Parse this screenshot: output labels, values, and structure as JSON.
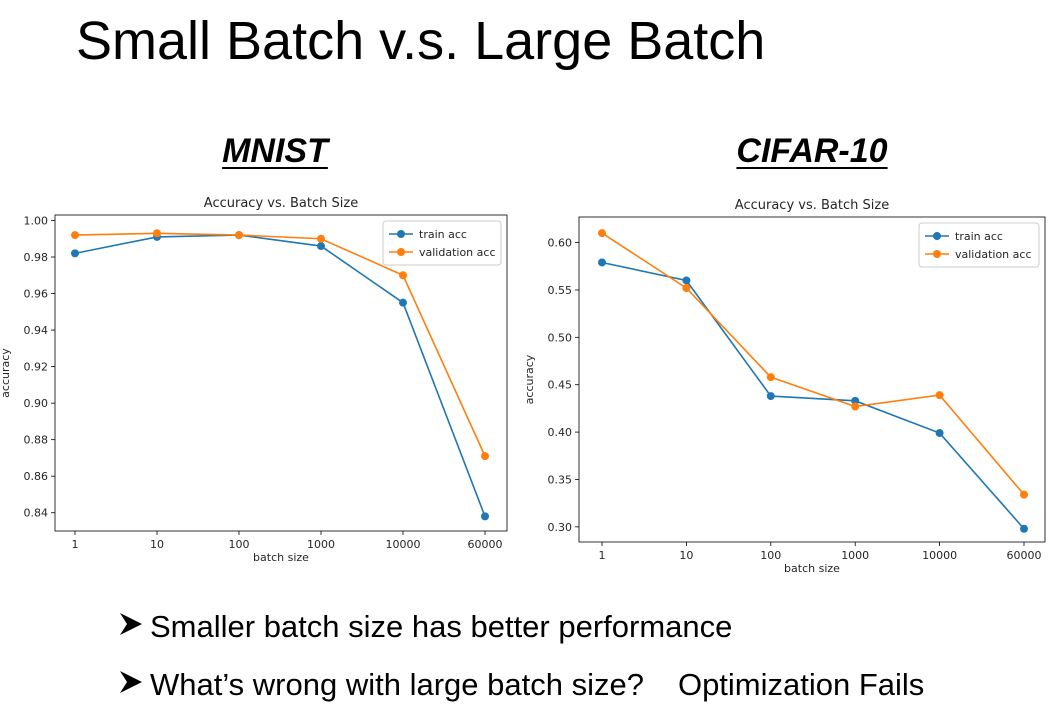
{
  "slide": {
    "title": "Small Batch v.s. Large Batch",
    "bullets": [
      {
        "text": "Smaller batch size has better performance",
        "answer": ""
      },
      {
        "text": "What’s wrong with large batch size?",
        "answer": "Optimization Fails"
      }
    ]
  },
  "headings": {
    "left": "MNIST",
    "right": "CIFAR-10"
  },
  "colors": {
    "train": "#1f77b4",
    "validation": "#ff7f0e"
  },
  "chart_data": [
    {
      "type": "line",
      "title": "Accuracy vs. Batch Size",
      "xlabel": "batch size",
      "ylabel": "accuracy",
      "categories": [
        "1",
        "10",
        "100",
        "1000",
        "10000",
        "60000"
      ],
      "ylim": [
        0.83,
        1.003
      ],
      "yticks": [
        0.84,
        0.86,
        0.88,
        0.9,
        0.92,
        0.94,
        0.96,
        0.98,
        1.0
      ],
      "ytick_labels": [
        "0.84",
        "0.86",
        "0.88",
        "0.90",
        "0.92",
        "0.94",
        "0.96",
        "0.98",
        "1.00"
      ],
      "legend": "top-right",
      "grid": false,
      "series": [
        {
          "name": "train acc",
          "color": "#1f77b4",
          "values": [
            0.982,
            0.991,
            0.992,
            0.986,
            0.955,
            0.838
          ]
        },
        {
          "name": "validation acc",
          "color": "#ff7f0e",
          "values": [
            0.992,
            0.993,
            0.992,
            0.99,
            0.97,
            0.871
          ]
        }
      ]
    },
    {
      "type": "line",
      "title": "Accuracy vs. Batch Size",
      "xlabel": "batch size",
      "ylabel": "accuracy",
      "categories": [
        "1",
        "10",
        "100",
        "1000",
        "10000",
        "60000"
      ],
      "ylim": [
        0.284,
        0.627
      ],
      "yticks": [
        0.3,
        0.35,
        0.4,
        0.45,
        0.5,
        0.55,
        0.6
      ],
      "ytick_labels": [
        "0.30",
        "0.35",
        "0.40",
        "0.45",
        "0.50",
        "0.55",
        "0.60"
      ],
      "legend": "top-right",
      "grid": false,
      "series": [
        {
          "name": "train acc",
          "color": "#1f77b4",
          "values": [
            0.579,
            0.56,
            0.438,
            0.433,
            0.399,
            0.298
          ]
        },
        {
          "name": "validation acc",
          "color": "#ff7f0e",
          "values": [
            0.61,
            0.552,
            0.458,
            0.427,
            0.439,
            0.334
          ]
        }
      ]
    }
  ]
}
